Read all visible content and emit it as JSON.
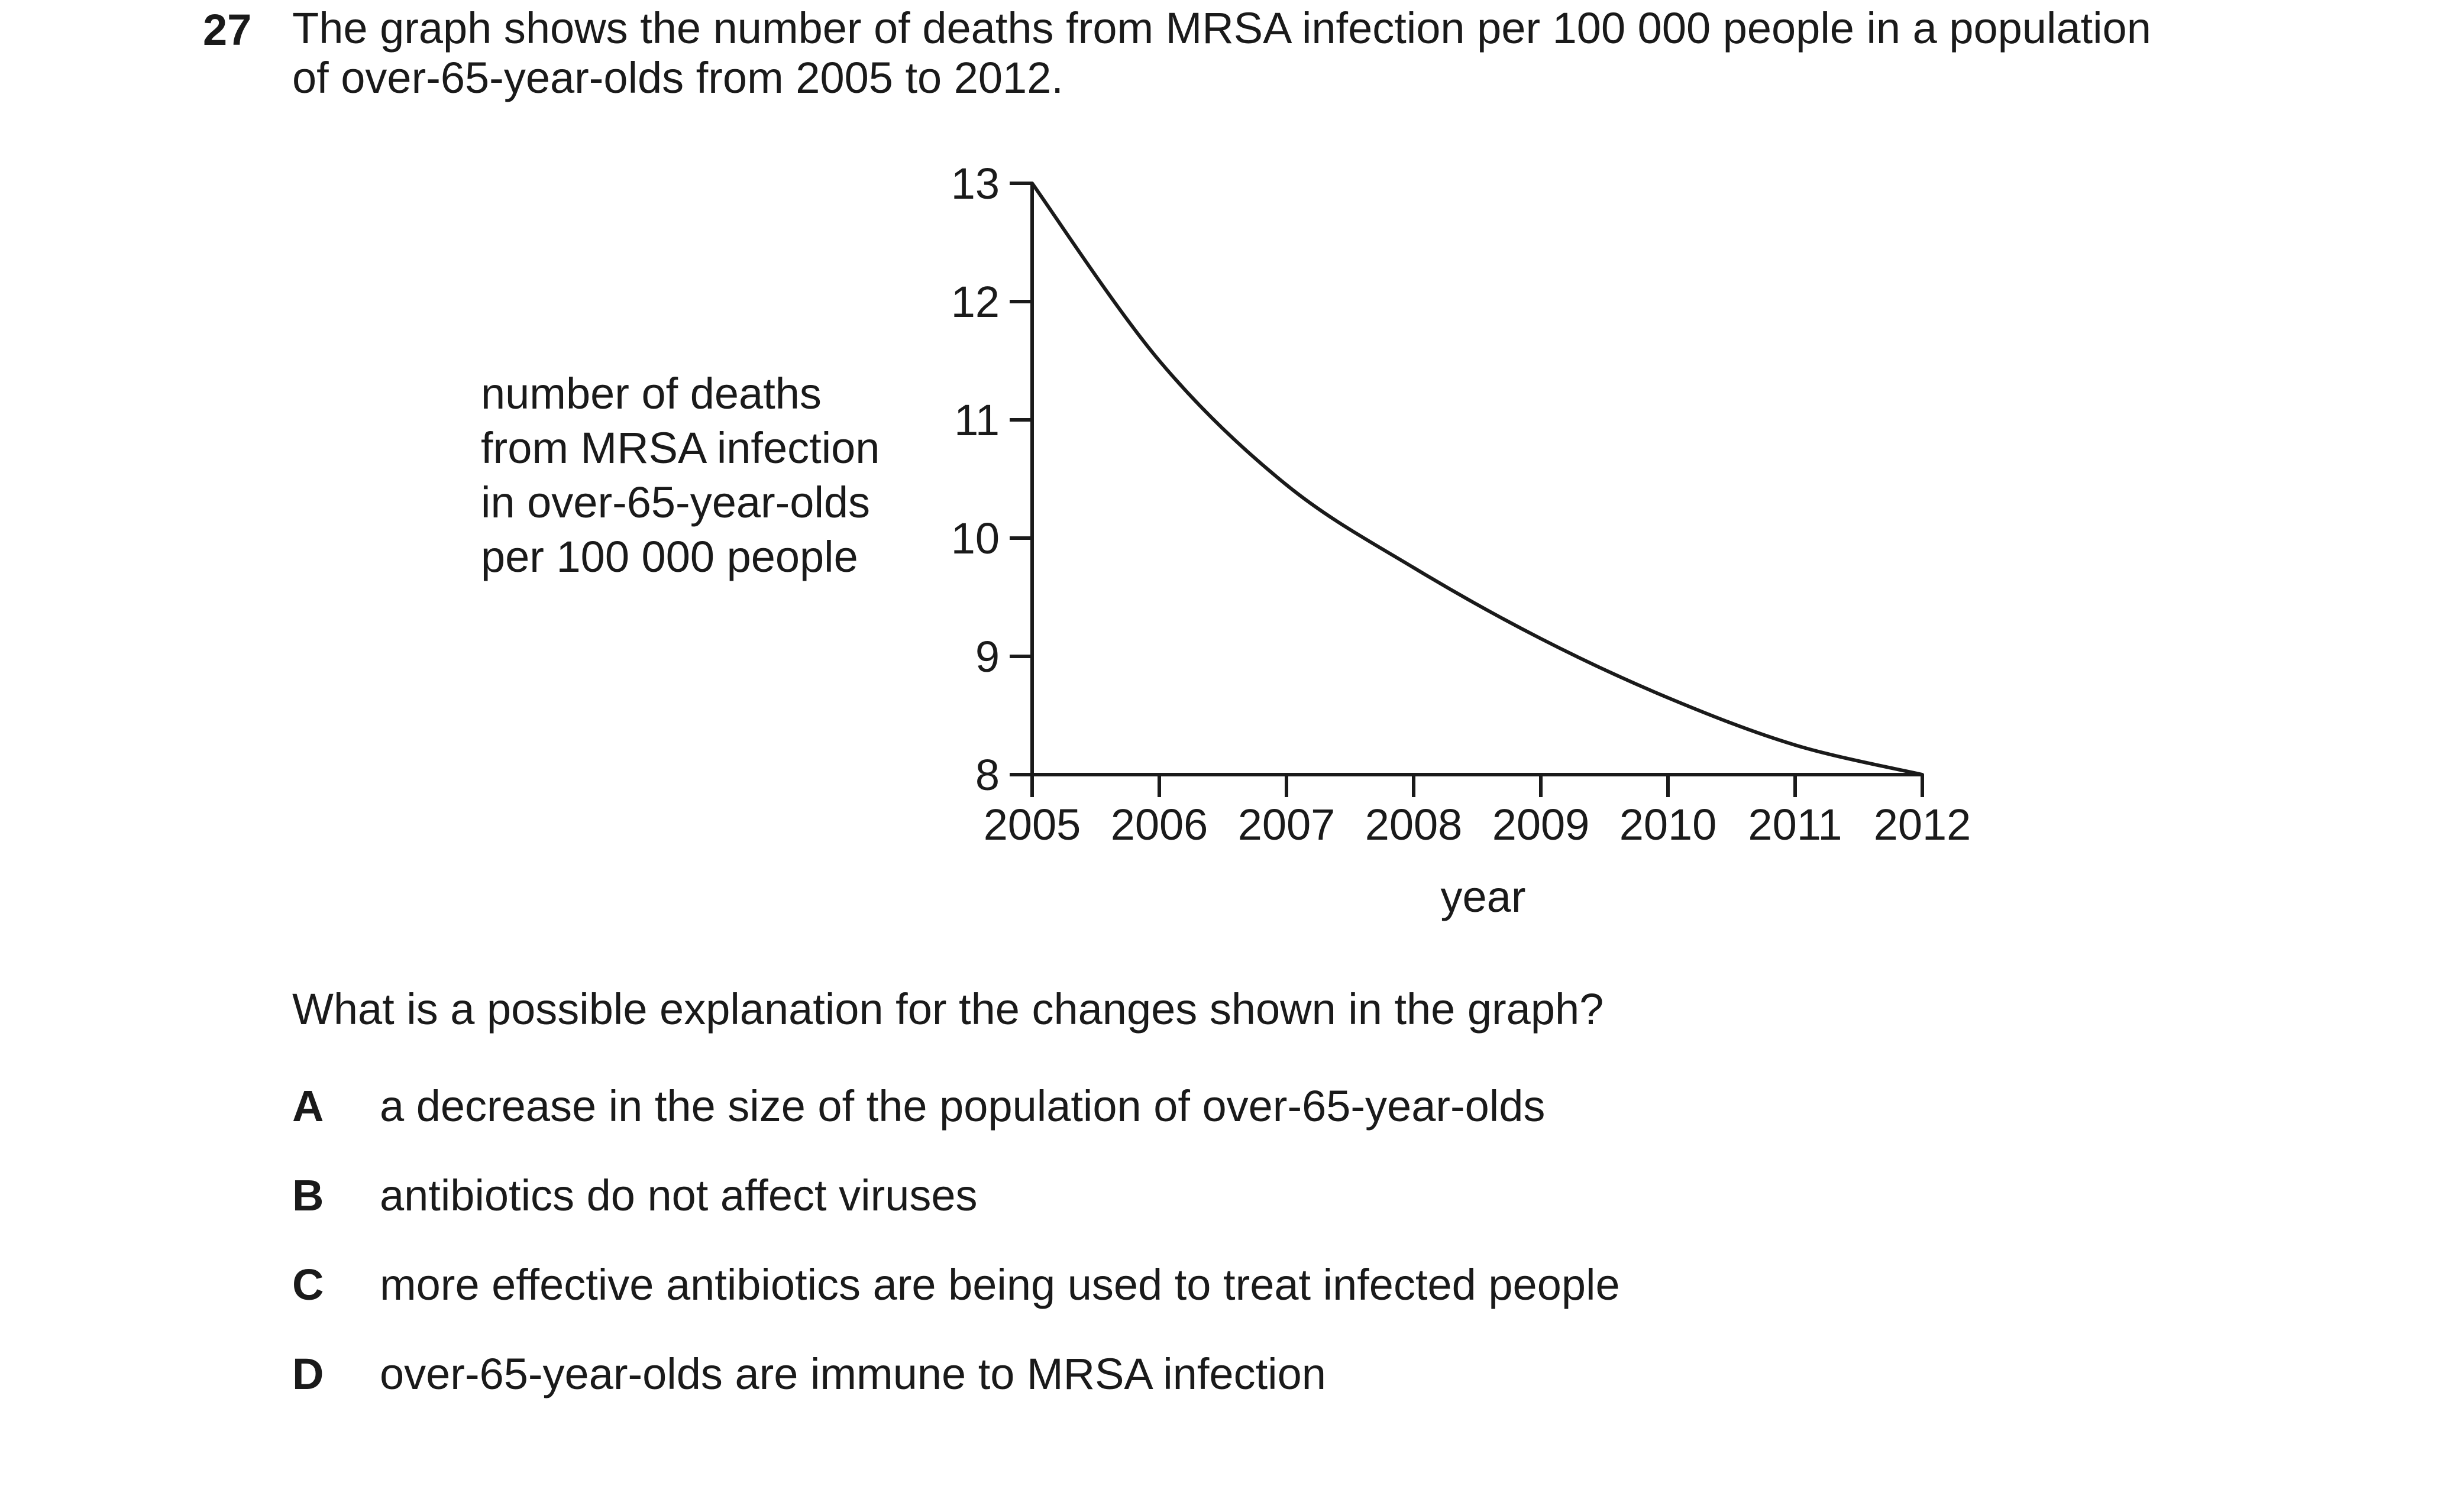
{
  "question": {
    "number": "27",
    "stem_line1": "The graph shows the number of deaths from MRSA infection per 100 000 people in a population",
    "stem_line2": "of over-65-year-olds from 2005 to 2012.",
    "prompt": "What is a possible explanation for the changes shown in the graph?",
    "options": [
      {
        "letter": "A",
        "text": "a decrease in the size of the population of over-65-year-olds"
      },
      {
        "letter": "B",
        "text": "antibiotics do not affect viruses"
      },
      {
        "letter": "C",
        "text": "more effective antibiotics are being used to treat infected people"
      },
      {
        "letter": "D",
        "text": "over-65-year-olds are immune to MRSA infection"
      }
    ]
  },
  "chart_data": {
    "type": "line",
    "title": "",
    "xlabel": "year",
    "ylabel_lines": [
      "number of deaths",
      "from MRSA infection",
      "in over-65-year-olds",
      "per 100 000 people"
    ],
    "x_ticks": [
      "2005",
      "2006",
      "2007",
      "2008",
      "2009",
      "2010",
      "2011",
      "2012"
    ],
    "y_ticks": [
      "8",
      "9",
      "10",
      "11",
      "12",
      "13"
    ],
    "xlim": [
      2005,
      2012
    ],
    "ylim": [
      8,
      13
    ],
    "grid": false,
    "series": [
      {
        "x": [
          2005,
          2006,
          2007,
          2008,
          2009,
          2010,
          2011,
          2012
        ],
        "y": [
          13.0,
          11.5,
          10.45,
          9.75,
          9.15,
          8.65,
          8.25,
          8.0
        ],
        "color": "#1a1a1a"
      }
    ]
  }
}
